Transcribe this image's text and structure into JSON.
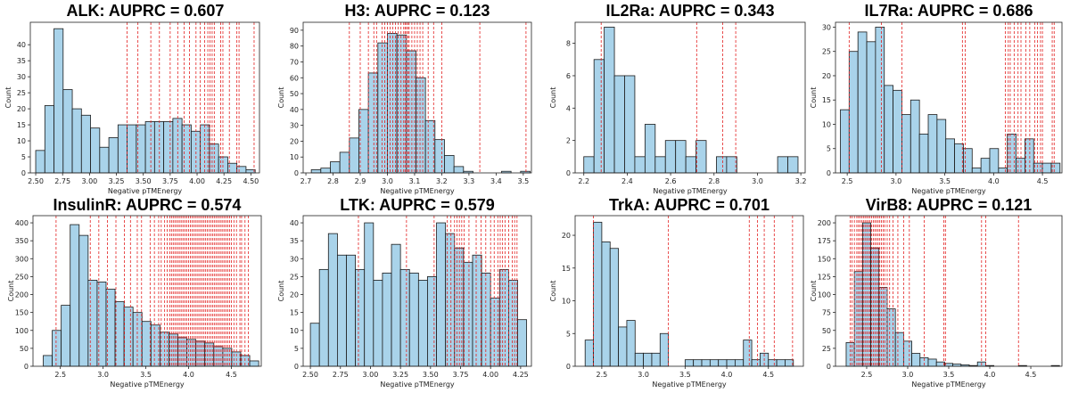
{
  "chart_data": [
    {
      "id": "alk",
      "type": "histogram",
      "title": "ALK: AUPRC = 0.607",
      "xlabel": "Negative pTMEnergy",
      "ylabel": "Count",
      "xlim": [
        2.45,
        4.58
      ],
      "ylim": [
        0,
        47
      ],
      "xticks": [
        "2.50",
        "2.75",
        "3.00",
        "3.25",
        "3.50",
        "3.75",
        "4.00",
        "4.25",
        "4.50"
      ],
      "yticks": [
        "0",
        "5",
        "10",
        "15",
        "20",
        "25",
        "30",
        "35",
        "40"
      ],
      "bins": [
        2.5,
        2.585,
        2.67,
        2.755,
        2.84,
        2.925,
        3.01,
        3.095,
        3.18,
        3.265,
        3.35,
        3.435,
        3.52,
        3.605,
        3.69,
        3.775,
        3.86,
        3.945,
        4.03,
        4.115,
        4.2,
        4.285,
        4.37,
        4.455,
        4.54
      ],
      "counts": [
        7,
        21,
        45,
        26,
        20,
        18,
        14,
        8,
        11,
        15,
        15,
        15,
        16,
        16,
        16,
        17,
        15,
        13,
        15,
        9,
        5,
        3,
        2,
        1
      ],
      "positives": [
        3.35,
        3.45,
        3.57,
        3.65,
        3.75,
        3.82,
        3.88,
        3.93,
        3.99,
        4.03,
        4.07,
        4.1,
        4.12,
        4.14,
        4.16,
        4.22,
        4.24,
        4.3,
        4.37,
        4.39,
        4.53
      ]
    },
    {
      "id": "h3",
      "type": "histogram",
      "title": "H3: AUPRC = 0.123",
      "xlabel": "Negative pTMEnergy",
      "ylabel": "Count",
      "xlim": [
        2.69,
        3.53
      ],
      "ylim": [
        0,
        95
      ],
      "xticks": [
        "2.7",
        "2.8",
        "2.9",
        "3.0",
        "3.1",
        "3.2",
        "3.3",
        "3.4",
        "3.5"
      ],
      "yticks": [
        "0",
        "10",
        "20",
        "30",
        "40",
        "50",
        "60",
        "70",
        "80",
        "90"
      ],
      "bins": [
        2.72,
        2.755,
        2.79,
        2.825,
        2.86,
        2.895,
        2.93,
        2.965,
        3.0,
        3.035,
        3.07,
        3.105,
        3.14,
        3.175,
        3.21,
        3.245,
        3.28,
        3.315,
        3.35,
        3.385,
        3.42,
        3.455,
        3.49,
        3.525
      ],
      "counts": [
        2,
        3,
        7,
        13,
        22,
        40,
        63,
        82,
        88,
        87,
        77,
        60,
        33,
        21,
        11,
        4,
        1,
        0,
        0,
        0,
        1,
        0,
        1
      ],
      "positives": [
        2.86,
        2.9,
        2.93,
        2.95,
        2.96,
        2.98,
        2.99,
        3.0,
        3.01,
        3.02,
        3.03,
        3.04,
        3.05,
        3.06,
        3.065,
        3.07,
        3.075,
        3.08,
        3.09,
        3.1,
        3.11,
        3.12,
        3.13,
        3.15,
        3.17,
        3.2,
        3.34,
        3.51
      ]
    },
    {
      "id": "il2ra",
      "type": "histogram",
      "title": "IL2Ra: AUPRC = 0.343",
      "xlabel": "Negative pTMEnergy",
      "ylabel": "Count",
      "xlim": [
        2.16,
        3.22
      ],
      "ylim": [
        0,
        9.3
      ],
      "xticks": [
        "2.2",
        "2.4",
        "2.6",
        "2.8",
        "3.0",
        "3.2"
      ],
      "yticks": [
        "0",
        "2",
        "4",
        "6",
        "8"
      ],
      "bins": [
        2.2,
        2.247,
        2.294,
        2.341,
        2.388,
        2.435,
        2.482,
        2.529,
        2.576,
        2.623,
        2.67,
        2.717,
        2.764,
        2.811,
        2.858,
        2.905,
        2.952,
        2.999,
        3.046,
        3.093,
        3.14,
        3.187
      ],
      "counts": [
        1,
        7,
        9,
        6,
        6,
        1,
        3,
        1,
        2,
        2,
        1,
        2,
        0,
        1,
        1,
        0,
        0,
        0,
        0,
        1,
        1
      ],
      "positives": [
        2.28,
        2.72,
        2.84,
        2.9
      ]
    },
    {
      "id": "il7ra",
      "type": "histogram",
      "title": "IL7Ra: AUPRC = 0.686",
      "xlabel": "Negative pTMEnergy",
      "ylabel": "Count",
      "xlim": [
        2.38,
        4.7
      ],
      "ylim": [
        0,
        31
      ],
      "xticks": [
        "2.5",
        "3.0",
        "3.5",
        "4.0",
        "4.5"
      ],
      "yticks": [
        "0",
        "5",
        "10",
        "15",
        "20",
        "25",
        "30"
      ],
      "bins": [
        2.43,
        2.52,
        2.61,
        2.7,
        2.79,
        2.88,
        2.97,
        3.06,
        3.15,
        3.24,
        3.33,
        3.42,
        3.51,
        3.6,
        3.69,
        3.78,
        3.87,
        3.96,
        4.05,
        4.14,
        4.23,
        4.32,
        4.41,
        4.5,
        4.59,
        4.68
      ],
      "counts": [
        13,
        25,
        29,
        27,
        30,
        18,
        17,
        12,
        15,
        8,
        12,
        11,
        7,
        6,
        5,
        1,
        3,
        5,
        1,
        8,
        3,
        7,
        2,
        2,
        2
      ],
      "positives": [
        2.52,
        2.85,
        3.06,
        3.68,
        3.71,
        4.12,
        4.15,
        4.17,
        4.21,
        4.25,
        4.28,
        4.33,
        4.37,
        4.42,
        4.45,
        4.48,
        4.5,
        4.6,
        4.62
      ]
    },
    {
      "id": "insulinr",
      "type": "histogram",
      "title": "InsulinR: AUPRC = 0.574",
      "xlabel": "Negative pTMEnergy",
      "ylabel": "Count",
      "xlim": [
        2.18,
        4.85
      ],
      "ylim": [
        0,
        420
      ],
      "xticks": [
        "2.5",
        "3.0",
        "3.5",
        "4.0",
        "4.5"
      ],
      "yticks": [
        "0",
        "50",
        "100",
        "150",
        "200",
        "250",
        "300",
        "350",
        "400"
      ],
      "bins": [
        2.3,
        2.405,
        2.51,
        2.615,
        2.72,
        2.825,
        2.93,
        3.035,
        3.14,
        3.245,
        3.35,
        3.455,
        3.56,
        3.665,
        3.77,
        3.875,
        3.98,
        4.085,
        4.19,
        4.295,
        4.4,
        4.505,
        4.61,
        4.715,
        4.82
      ],
      "counts": [
        30,
        100,
        170,
        395,
        365,
        240,
        235,
        215,
        180,
        165,
        150,
        125,
        115,
        95,
        90,
        80,
        75,
        70,
        65,
        55,
        50,
        40,
        30,
        15
      ],
      "positives": [
        2.45,
        2.85,
        2.95,
        3.05,
        3.15,
        3.25,
        3.32,
        3.4,
        3.45,
        3.55,
        3.6,
        3.65,
        3.68,
        3.72,
        3.75,
        3.78,
        3.8,
        3.82,
        3.84,
        3.86,
        3.88,
        3.9,
        3.92,
        3.94,
        3.96,
        3.98,
        4.0,
        4.02,
        4.04,
        4.06,
        4.08,
        4.1,
        4.12,
        4.14,
        4.16,
        4.18,
        4.2,
        4.22,
        4.24,
        4.26,
        4.28,
        4.3,
        4.32,
        4.34,
        4.36,
        4.38,
        4.4,
        4.42,
        4.44,
        4.46,
        4.48,
        4.5,
        4.53,
        4.56,
        4.6,
        4.62,
        4.66,
        4.7
      ]
    },
    {
      "id": "ltk",
      "type": "histogram",
      "title": "LTK: AUPRC = 0.579",
      "xlabel": "Negative pTMEnergy",
      "ylabel": "Count",
      "xlim": [
        2.44,
        4.34
      ],
      "ylim": [
        0,
        42
      ],
      "xticks": [
        "2.50",
        "2.75",
        "3.00",
        "3.25",
        "3.50",
        "3.75",
        "4.00",
        "4.25"
      ],
      "yticks": [
        "0",
        "5",
        "10",
        "15",
        "20",
        "25",
        "30",
        "35",
        "40"
      ],
      "bins": [
        2.5,
        2.575,
        2.65,
        2.725,
        2.8,
        2.875,
        2.95,
        3.025,
        3.1,
        3.175,
        3.25,
        3.325,
        3.4,
        3.475,
        3.55,
        3.625,
        3.7,
        3.775,
        3.85,
        3.925,
        4.0,
        4.075,
        4.15,
        4.225,
        4.3
      ],
      "counts": [
        12,
        27,
        37,
        31,
        31,
        27,
        40,
        24,
        26,
        34,
        27,
        26,
        24,
        25,
        40,
        37,
        33,
        29,
        31,
        26,
        19,
        27,
        24,
        13
      ],
      "positives": [
        2.9,
        3.3,
        3.53,
        3.64,
        3.67,
        3.7,
        3.72,
        3.74,
        3.76,
        3.78,
        3.82,
        3.88,
        3.92,
        3.96,
        4.0,
        4.03,
        4.06,
        4.08,
        4.1,
        4.12,
        4.15,
        4.18,
        4.2,
        4.22
      ]
    },
    {
      "id": "trka",
      "type": "histogram",
      "title": "TrkA: AUPRC = 0.701",
      "xlabel": "Negative pTMEnergy",
      "ylabel": "Count",
      "xlim": [
        2.18,
        4.92
      ],
      "ylim": [
        0,
        23
      ],
      "xticks": [
        "2.5",
        "3.0",
        "3.5",
        "4.0",
        "4.5"
      ],
      "yticks": [
        "0",
        "5",
        "10",
        "15",
        "20"
      ],
      "bins": [
        2.3,
        2.4,
        2.5,
        2.6,
        2.7,
        2.8,
        2.9,
        3.0,
        3.1,
        3.2,
        3.3,
        3.4,
        3.5,
        3.6,
        3.7,
        3.8,
        3.9,
        4.0,
        4.1,
        4.2,
        4.3,
        4.4,
        4.5,
        4.6,
        4.7,
        4.8
      ],
      "counts": [
        4,
        22,
        19,
        18,
        6,
        7,
        2,
        2,
        2,
        5,
        0,
        0,
        1,
        1,
        1,
        1,
        1,
        1,
        1,
        4,
        1,
        2,
        1,
        1,
        1
      ],
      "positives": [
        2.4,
        3.3,
        4.27,
        4.37,
        4.45,
        4.57,
        4.79
      ]
    },
    {
      "id": "virb8",
      "type": "histogram",
      "title": "VirB8: AUPRC = 0.121",
      "xlabel": "Negative pTMEnergy",
      "ylabel": "Count",
      "xlim": [
        2.12,
        4.88
      ],
      "ylim": [
        0,
        210
      ],
      "xticks": [
        "2.5",
        "3.0",
        "3.5",
        "4.0",
        "4.5"
      ],
      "yticks": [
        "0",
        "25",
        "50",
        "75",
        "100",
        "125",
        "150",
        "175",
        "200"
      ],
      "bins": [
        2.25,
        2.35,
        2.45,
        2.55,
        2.65,
        2.75,
        2.85,
        2.95,
        3.05,
        3.15,
        3.25,
        3.35,
        3.45,
        3.55,
        3.65,
        3.75,
        3.85,
        3.95,
        4.05,
        4.15,
        4.25,
        4.35,
        4.45,
        4.55,
        4.65,
        4.75,
        4.85
      ],
      "counts": [
        33,
        132,
        200,
        165,
        110,
        80,
        47,
        35,
        18,
        12,
        10,
        6,
        4,
        3,
        2,
        1,
        6,
        1,
        0,
        0,
        0,
        1,
        0,
        0,
        0,
        1
      ],
      "positives": [
        2.3,
        2.32,
        2.35,
        2.38,
        2.4,
        2.42,
        2.44,
        2.46,
        2.48,
        2.5,
        2.52,
        2.54,
        2.56,
        2.58,
        2.6,
        2.62,
        2.64,
        2.66,
        2.68,
        2.7,
        2.72,
        2.75,
        2.78,
        2.82,
        2.88,
        2.95,
        3.02,
        3.2,
        3.44,
        3.46,
        3.9,
        3.95,
        4.35
      ]
    }
  ]
}
